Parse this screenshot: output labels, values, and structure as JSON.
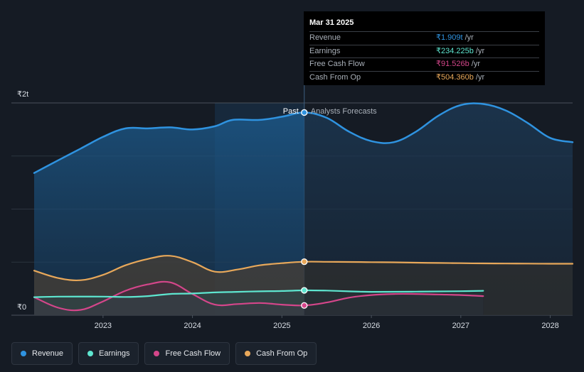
{
  "chart_data": {
    "type": "line",
    "title": "",
    "xlabel": "",
    "ylabel": "",
    "y_ticks": [
      "₹2t",
      "₹0"
    ],
    "x_ticks": [
      "2023",
      "2024",
      "2025",
      "2026",
      "2027",
      "2028"
    ],
    "xlim": [
      2022.23,
      2028.25
    ],
    "ylim": [
      0,
      2.0
    ],
    "grid": true,
    "legend_position": "bottom-left",
    "past_label": "Past",
    "forecast_label": "Analysts Forecasts",
    "divider_x": 2025.25,
    "highlight_start_x": 2024.25,
    "series": [
      {
        "name": "Revenue",
        "color": "#2f93e0",
        "x": [
          2022.23,
          2022.5,
          2022.75,
          2023.0,
          2023.25,
          2023.5,
          2023.75,
          2024.0,
          2024.25,
          2024.45,
          2024.75,
          2025.0,
          2025.25,
          2025.5,
          2025.75,
          2026.0,
          2026.25,
          2026.5,
          2026.75,
          2027.0,
          2027.25,
          2027.5,
          2027.75,
          2028.0,
          2028.25
        ],
        "y": [
          1.34,
          1.46,
          1.57,
          1.68,
          1.76,
          1.76,
          1.77,
          1.75,
          1.78,
          1.84,
          1.84,
          1.87,
          1.91,
          1.86,
          1.73,
          1.64,
          1.63,
          1.73,
          1.88,
          1.98,
          1.99,
          1.93,
          1.81,
          1.67,
          1.63
        ]
      },
      {
        "name": "Earnings",
        "color": "#5ee6d0",
        "x": [
          2022.23,
          2022.5,
          2023.0,
          2023.25,
          2023.5,
          2023.75,
          2024.0,
          2024.25,
          2024.5,
          2024.75,
          2025.0,
          2025.25,
          2025.5,
          2025.75,
          2026.0,
          2026.5,
          2027.0,
          2027.25
        ],
        "y": [
          0.17,
          0.175,
          0.175,
          0.172,
          0.18,
          0.2,
          0.205,
          0.215,
          0.22,
          0.225,
          0.228,
          0.234,
          0.232,
          0.225,
          0.22,
          0.222,
          0.226,
          0.23
        ]
      },
      {
        "name": "Free Cash Flow",
        "color": "#d4468a",
        "x": [
          2022.23,
          2022.5,
          2022.75,
          2023.0,
          2023.25,
          2023.5,
          2023.75,
          2024.0,
          2024.25,
          2024.5,
          2024.75,
          2025.0,
          2025.25,
          2025.5,
          2025.75,
          2026.0,
          2026.25,
          2026.5,
          2026.75,
          2027.0,
          2027.25
        ],
        "y": [
          0.17,
          0.07,
          0.05,
          0.13,
          0.23,
          0.29,
          0.31,
          0.2,
          0.1,
          0.105,
          0.115,
          0.1,
          0.092,
          0.12,
          0.165,
          0.19,
          0.2,
          0.2,
          0.195,
          0.19,
          0.18
        ]
      },
      {
        "name": "Cash From Op",
        "color": "#e8a85a",
        "x": [
          2022.23,
          2022.5,
          2022.75,
          2023.0,
          2023.25,
          2023.5,
          2023.75,
          2024.0,
          2024.25,
          2024.5,
          2024.75,
          2025.0,
          2025.25,
          2025.5,
          2025.75,
          2026.0,
          2026.25,
          2026.5,
          2026.75,
          2027.0,
          2027.25,
          2027.5,
          2027.75,
          2028.0,
          2028.25
        ],
        "y": [
          0.42,
          0.35,
          0.33,
          0.38,
          0.47,
          0.53,
          0.56,
          0.5,
          0.41,
          0.43,
          0.47,
          0.49,
          0.504,
          0.503,
          0.502,
          0.5,
          0.498,
          0.495,
          0.492,
          0.49,
          0.488,
          0.487,
          0.486,
          0.485,
          0.485
        ]
      }
    ]
  },
  "tooltip": {
    "date": "Mar 31 2025",
    "rows": [
      {
        "name": "Revenue",
        "value": "₹1.909t",
        "unit": "/yr",
        "color": "#2f93e0"
      },
      {
        "name": "Earnings",
        "value": "₹234.225b",
        "unit": "/yr",
        "color": "#5ee6d0"
      },
      {
        "name": "Free Cash Flow",
        "value": "₹91.526b",
        "unit": "/yr",
        "color": "#d4468a"
      },
      {
        "name": "Cash From Op",
        "value": "₹504.360b",
        "unit": "/yr",
        "color": "#e8a85a"
      }
    ]
  },
  "legend": [
    {
      "label": "Revenue",
      "color": "#2f93e0"
    },
    {
      "label": "Earnings",
      "color": "#5ee6d0"
    },
    {
      "label": "Free Cash Flow",
      "color": "#d4468a"
    },
    {
      "label": "Cash From Op",
      "color": "#e8a85a"
    }
  ]
}
